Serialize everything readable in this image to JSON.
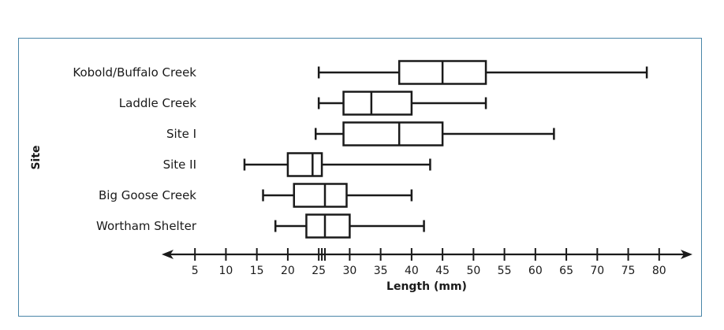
{
  "chart_data": {
    "type": "boxplot",
    "xlabel": "Length (mm)",
    "ylabel": "Site",
    "xlim": [
      0,
      85
    ],
    "x_ticks": [
      5,
      10,
      15,
      20,
      25,
      30,
      35,
      40,
      45,
      50,
      55,
      60,
      65,
      70,
      75,
      80
    ],
    "extra_ticks": [
      25.5,
      26
    ],
    "categories": [
      "Kobold/Buffalo Creek",
      "Laddle Creek",
      "Site I",
      "Site II",
      "Big Goose Creek",
      "Wortham Shelter"
    ],
    "series": [
      {
        "category": "Kobold/Buffalo Creek",
        "min": 25,
        "q1": 38,
        "median": 45,
        "q3": 52,
        "max": 78
      },
      {
        "category": "Laddle Creek",
        "min": 25,
        "q1": 29,
        "median": 33.5,
        "q3": 40,
        "max": 52
      },
      {
        "category": "Site I",
        "min": 24.5,
        "q1": 29,
        "median": 38,
        "q3": 45,
        "max": 63
      },
      {
        "category": "Site II",
        "min": 13,
        "q1": 20,
        "median": 24,
        "q3": 25.5,
        "max": 43
      },
      {
        "category": "Big Goose Creek",
        "min": 16,
        "q1": 21,
        "median": 26,
        "q3": 29.5,
        "max": 40
      },
      {
        "category": "Wortham Shelter",
        "min": 18,
        "q1": 23,
        "median": 26,
        "q3": 30,
        "max": 42
      }
    ],
    "grid": false,
    "legend": "none"
  }
}
